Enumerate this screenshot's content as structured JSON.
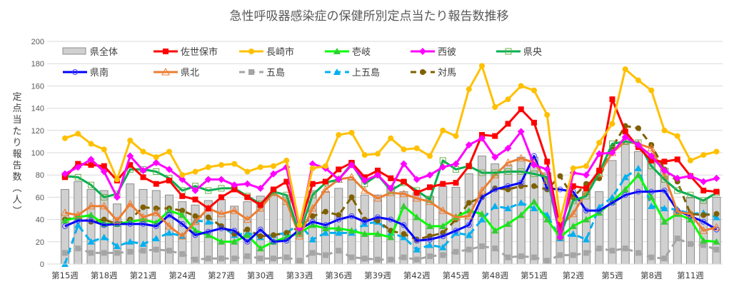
{
  "chart_data": {
    "type": "line",
    "title": "急性呼吸器感染症の保健所別定点当たり報告数推移",
    "xlabel": "",
    "ylabel": "定点当たり報告数（人）",
    "ylim": [
      0,
      200
    ],
    "yticks": [
      0,
      20,
      40,
      60,
      80,
      100,
      120,
      140,
      160,
      180,
      200
    ],
    "grid": true,
    "legend_position": "top",
    "categories": [
      "第15週",
      "第16週",
      "第17週",
      "第18週",
      "第19週",
      "第20週",
      "第21週",
      "第22週",
      "第23週",
      "第24週",
      "第25週",
      "第26週",
      "第27週",
      "第28週",
      "第29週",
      "第30週",
      "第31週",
      "第32週",
      "第33週",
      "第34週",
      "第35週",
      "第36週",
      "第37週",
      "第38週",
      "第39週",
      "第40週",
      "第41週",
      "第42週",
      "第43週",
      "第44週",
      "第45週",
      "第46週",
      "第47週",
      "第48週",
      "第49週",
      "第50週",
      "第51週",
      "第52週",
      "第1週",
      "第2週",
      "第3週",
      "第4週",
      "第5週",
      "第6週",
      "第7週",
      "第8週",
      "第9週",
      "第10週",
      "第11週",
      "第12週",
      "第13週"
    ],
    "xtick_labels": [
      "第15週",
      "第18週",
      "第21週",
      "第24週",
      "第27週",
      "第30週",
      "第33週",
      "第36週",
      "第39週",
      "第42週",
      "第45週",
      "第48週",
      "第51週",
      "第2週",
      "第5週",
      "第8週",
      "第11週"
    ],
    "series": [
      {
        "name": "県全体",
        "kind": "bar",
        "color": "#d0d0d0",
        "values": [
          67,
          74,
          67,
          66,
          54,
          72,
          67,
          66,
          62,
          56,
          53,
          57,
          58,
          52,
          56,
          61,
          62,
          62,
          34,
          66,
          65,
          68,
          76,
          62,
          62,
          70,
          65,
          64,
          61,
          70,
          69,
          81,
          97,
          90,
          89,
          96,
          96,
          82,
          34,
          60,
          65,
          65,
          93,
          108,
          101,
          96,
          86,
          48,
          60,
          58,
          60
        ]
      },
      {
        "name": "佐世保市",
        "kind": "line",
        "color": "#ff0000",
        "marker": "square",
        "values": [
          78,
          90,
          89,
          88,
          75,
          89,
          78,
          72,
          75,
          61,
          58,
          50,
          60,
          67,
          60,
          53,
          67,
          74,
          33,
          72,
          74,
          85,
          91,
          78,
          84,
          77,
          74,
          64,
          69,
          72,
          73,
          88,
          116,
          115,
          126,
          139,
          127,
          92,
          31,
          70,
          68,
          84,
          148,
          119,
          105,
          93,
          92,
          94,
          79,
          66,
          65
        ]
      },
      {
        "name": "長崎市",
        "kind": "line",
        "color": "#ffc000",
        "marker": "circle",
        "values": [
          113,
          117,
          108,
          103,
          76,
          111,
          101,
          96,
          101,
          80,
          83,
          87,
          89,
          90,
          83,
          87,
          88,
          93,
          35,
          86,
          88,
          116,
          118,
          98,
          99,
          113,
          103,
          104,
          97,
          120,
          115,
          157,
          178,
          141,
          148,
          160,
          156,
          134,
          40,
          86,
          88,
          109,
          126,
          175,
          165,
          156,
          120,
          115,
          93,
          98,
          101
        ]
      },
      {
        "name": "壱岐",
        "kind": "line",
        "color": "#00ff00",
        "marker": "triangle",
        "values": [
          39,
          42,
          44,
          36,
          36,
          38,
          40,
          37,
          48,
          44,
          30,
          26,
          20,
          20,
          26,
          14,
          20,
          24,
          28,
          35,
          32,
          32,
          30,
          27,
          27,
          24,
          52,
          42,
          34,
          34,
          42,
          48,
          45,
          30,
          36,
          44,
          56,
          40,
          24,
          34,
          40,
          46,
          56,
          67,
          80,
          60,
          38,
          45,
          40,
          21,
          20
        ]
      },
      {
        "name": "西彼",
        "kind": "line",
        "color": "#ff00ff",
        "marker": "diamond",
        "values": [
          81,
          87,
          94,
          83,
          60,
          97,
          84,
          91,
          85,
          76,
          66,
          76,
          76,
          71,
          72,
          68,
          81,
          87,
          32,
          90,
          86,
          76,
          89,
          75,
          80,
          68,
          90,
          76,
          80,
          87,
          90,
          107,
          113,
          96,
          104,
          119,
          89,
          85,
          24,
          82,
          80,
          99,
          100,
          114,
          107,
          97,
          84,
          77,
          79,
          74,
          77
        ]
      },
      {
        "name": "県央",
        "kind": "line",
        "color": "#00b050",
        "marker": "square-open",
        "values": [
          79,
          78,
          71,
          60,
          63,
          85,
          85,
          83,
          77,
          66,
          70,
          66,
          68,
          68,
          61,
          54,
          65,
          62,
          27,
          62,
          73,
          76,
          90,
          72,
          80,
          66,
          73,
          66,
          58,
          93,
          85,
          88,
          82,
          82,
          83,
          83,
          81,
          78,
          25,
          57,
          61,
          82,
          108,
          110,
          109,
          88,
          76,
          66,
          62,
          57,
          64
        ]
      },
      {
        "name": "県南",
        "kind": "line",
        "color": "#0000ff",
        "marker": "circle-open",
        "values": [
          34,
          39,
          39,
          35,
          36,
          36,
          36,
          34,
          44,
          36,
          26,
          29,
          32,
          30,
          20,
          31,
          20,
          21,
          31,
          38,
          35,
          40,
          43,
          38,
          42,
          40,
          35,
          21,
          22,
          25,
          30,
          35,
          60,
          67,
          70,
          73,
          97,
          68,
          67,
          65,
          48,
          48,
          55,
          62,
          65,
          65,
          66,
          48,
          43,
          38,
          31
        ]
      },
      {
        "name": "県北",
        "kind": "line",
        "color": "#ed7d31",
        "marker": "triangle-open",
        "values": [
          46,
          44,
          52,
          52,
          39,
          54,
          42,
          46,
          34,
          25,
          38,
          50,
          45,
          48,
          40,
          50,
          64,
          56,
          25,
          50,
          67,
          76,
          78,
          66,
          59,
          64,
          63,
          59,
          56,
          48,
          42,
          43,
          66,
          80,
          91,
          95,
          91,
          75,
          34,
          45,
          65,
          81,
          100,
          110,
          108,
          104,
          80,
          47,
          45,
          30,
          33
        ]
      },
      {
        "name": "五島",
        "kind": "line",
        "color": "#a5a5a5",
        "marker": "square",
        "dashed": true,
        "values": [
          10,
          14,
          10,
          10,
          10,
          11,
          12,
          13,
          12,
          9,
          4,
          5,
          5,
          5,
          7,
          5,
          5,
          6,
          3,
          10,
          8,
          12,
          6,
          5,
          4,
          4,
          6,
          4,
          7,
          8,
          11,
          13,
          16,
          14,
          6,
          7,
          6,
          3,
          8,
          8,
          10,
          14,
          12,
          14,
          10,
          6,
          5,
          23,
          18,
          17,
          13
        ]
      },
      {
        "name": "上五島",
        "kind": "line",
        "color": "#00b0f0",
        "marker": "triangle",
        "dashed": true,
        "values": [
          0,
          35,
          20,
          24,
          16,
          20,
          18,
          23,
          28,
          25,
          39,
          38,
          34,
          26,
          28,
          24,
          26,
          28,
          36,
          22,
          28,
          28,
          28,
          36,
          38,
          28,
          24,
          13,
          17,
          15,
          28,
          26,
          40,
          52,
          50,
          55,
          50,
          44,
          23,
          27,
          22,
          51,
          60,
          78,
          86,
          52,
          50,
          49,
          45,
          46,
          42
        ]
      },
      {
        "name": "対馬",
        "kind": "line",
        "color": "#7f6000",
        "marker": "circle",
        "dashed": true,
        "values": [
          40,
          42,
          38,
          40,
          36,
          40,
          51,
          50,
          50,
          48,
          43,
          42,
          34,
          27,
          31,
          25,
          26,
          28,
          33,
          43,
          47,
          44,
          60,
          40,
          39,
          30,
          27,
          22,
          25,
          28,
          40,
          55,
          60,
          68,
          67,
          70,
          70,
          67,
          79,
          60,
          72,
          77,
          105,
          124,
          122,
          107,
          85,
          74,
          45,
          44,
          45
        ]
      }
    ]
  }
}
